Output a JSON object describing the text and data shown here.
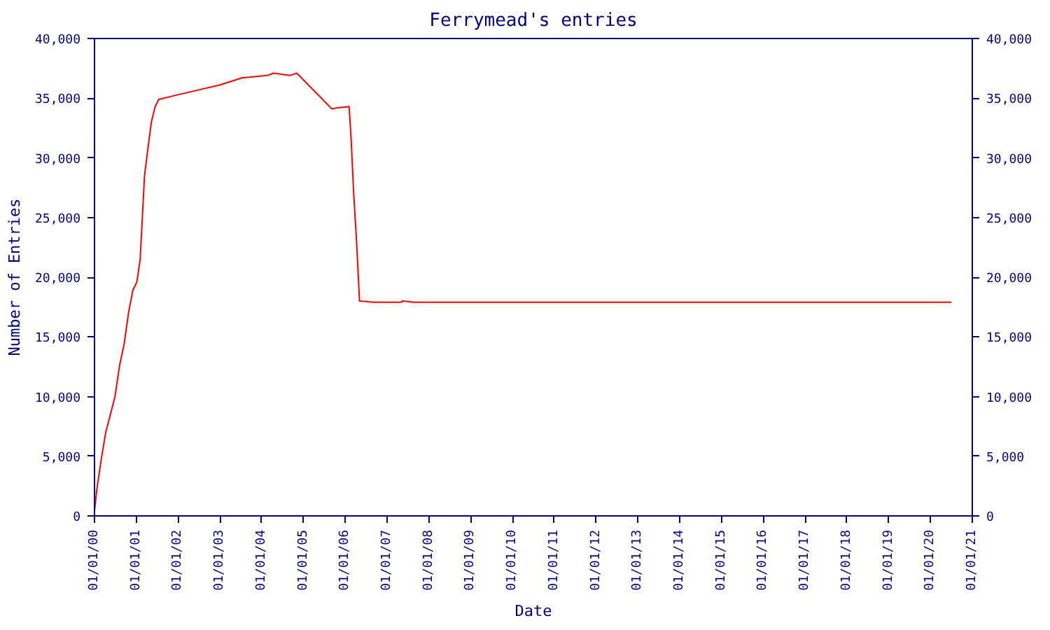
{
  "chart_data": {
    "type": "line",
    "title": "Ferrymead's entries",
    "xlabel": "Date",
    "ylabel": "Number of Entries",
    "x": [
      "2000-01-01",
      "2000-01-21",
      "2000-03-01",
      "2000-04-08",
      "2000-05-19",
      "2000-06-28",
      "2000-08-07",
      "2000-09-16",
      "2000-10-24",
      "2000-12-01",
      "2001-01-05",
      "2001-02-03",
      "2001-02-21",
      "2001-03-13",
      "2001-04-09",
      "2001-05-12",
      "2001-06-14",
      "2001-07-16",
      "2002-01-05",
      "2002-12-28",
      "2003-07-13",
      "2004-02-17",
      "2004-04-15",
      "2004-09-01",
      "2004-11-03",
      "2005-09-06",
      "2005-10-27",
      "2006-02-03",
      "2006-02-21",
      "2006-03-15",
      "2006-04-09",
      "2006-05-05",
      "2006-09-06",
      "2007-05-05",
      "2007-05-12",
      "2007-08-22",
      "2020-07-01"
    ],
    "series": [
      {
        "color": "#ff0000",
        "values": [
          400,
          2200,
          4800,
          7000,
          8500,
          10000,
          12600,
          14400,
          17000,
          18900,
          19600,
          21500,
          24800,
          28500,
          30600,
          33000,
          34300,
          34900,
          35300,
          36100,
          36700,
          36900,
          37100,
          36900,
          37100,
          34100,
          34200,
          34300,
          31500,
          27000,
          23000,
          18000,
          17900,
          17900,
          18000,
          17900,
          17900
        ]
      }
    ],
    "xlim": [
      "2000-01-01",
      "2021-01-01"
    ],
    "xticks": [
      {
        "value": "2000-01-01",
        "label": "01/01/00"
      },
      {
        "value": "2001-01-01",
        "label": "01/01/01"
      },
      {
        "value": "2002-01-01",
        "label": "01/01/02"
      },
      {
        "value": "2003-01-01",
        "label": "01/01/03"
      },
      {
        "value": "2004-01-01",
        "label": "01/01/04"
      },
      {
        "value": "2005-01-01",
        "label": "01/01/05"
      },
      {
        "value": "2006-01-01",
        "label": "01/01/06"
      },
      {
        "value": "2007-01-01",
        "label": "01/01/07"
      },
      {
        "value": "2008-01-01",
        "label": "01/01/08"
      },
      {
        "value": "2009-01-01",
        "label": "01/01/09"
      },
      {
        "value": "2010-01-01",
        "label": "01/01/10"
      },
      {
        "value": "2011-01-01",
        "label": "01/01/11"
      },
      {
        "value": "2012-01-01",
        "label": "01/01/12"
      },
      {
        "value": "2013-01-01",
        "label": "01/01/13"
      },
      {
        "value": "2014-01-01",
        "label": "01/01/14"
      },
      {
        "value": "2015-01-01",
        "label": "01/01/15"
      },
      {
        "value": "2016-01-01",
        "label": "01/01/16"
      },
      {
        "value": "2017-01-01",
        "label": "01/01/17"
      },
      {
        "value": "2018-01-01",
        "label": "01/01/18"
      },
      {
        "value": "2019-01-01",
        "label": "01/01/19"
      },
      {
        "value": "2020-01-01",
        "label": "01/01/20"
      },
      {
        "value": "2021-01-01",
        "label": "01/01/21"
      }
    ],
    "ylim": [
      0,
      40000
    ],
    "yticks": [
      0,
      {
        "value": 5000,
        "label": "5,000"
      },
      {
        "value": 10000,
        "label": "10,000"
      },
      {
        "value": 15000,
        "label": "15,000"
      },
      {
        "value": 20000,
        "label": "20,000"
      },
      {
        "value": 25000,
        "label": "25,000"
      },
      {
        "value": 30000,
        "label": "30,000"
      },
      {
        "value": 35000,
        "label": "35,000"
      },
      {
        "value": 40000,
        "label": "40,000"
      }
    ],
    "y2lim": [
      0,
      40000
    ],
    "y2ticks": [
      0,
      {
        "value": 5000,
        "label": "5,000"
      },
      {
        "value": 10000,
        "label": "10,000"
      },
      {
        "value": 15000,
        "label": "15,000"
      },
      {
        "value": 20000,
        "label": "20,000"
      },
      {
        "value": 25000,
        "label": "25,000"
      },
      {
        "value": 30000,
        "label": "30,000"
      },
      {
        "value": 35000,
        "label": "35,000"
      },
      {
        "value": 40000,
        "label": "40,000"
      }
    ],
    "grid": false,
    "marker": "none",
    "line_style": "solid"
  }
}
